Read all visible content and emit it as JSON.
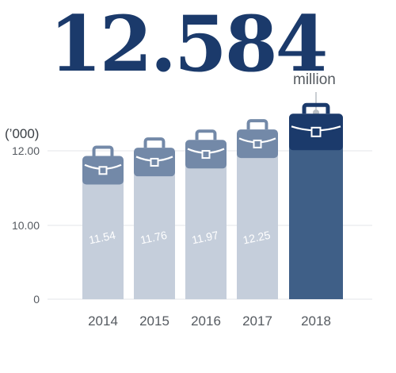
{
  "headline": {
    "value": "12.584",
    "unit": "million"
  },
  "chart_data": {
    "type": "bar",
    "ylabel": "(’000)",
    "categories": [
      "2014",
      "2015",
      "2016",
      "2017",
      "2018"
    ],
    "values": [
      11.54,
      11.76,
      11.97,
      12.25,
      12.584
    ],
    "data_labels": [
      "11.54",
      "11.76",
      "11.97",
      "12.25",
      ""
    ],
    "highlight_index": 4,
    "y_ticks": [
      {
        "label": "0"
      },
      {
        "label": "10.00",
        "value": 10
      },
      {
        "label": "12.00",
        "value": 12
      }
    ],
    "axis_break": true,
    "grid": true,
    "icons": "briefcase-icon",
    "colors": {
      "bar": "#c5cedb",
      "bar_highlight": "#3f5f87",
      "icon": "#7389a8",
      "icon_highlight": "#1b3a6b"
    }
  }
}
